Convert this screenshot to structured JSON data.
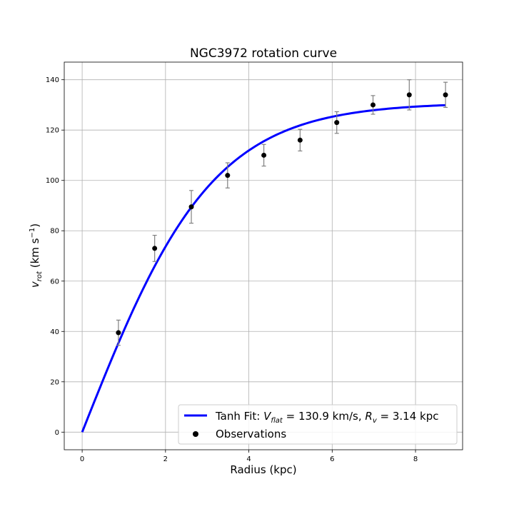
{
  "chart_data": {
    "type": "scatter",
    "title": "NGC3972 rotation curve",
    "xlabel": "Radius (kpc)",
    "ylabel_parts": {
      "v": "v",
      "sub": "rot",
      "unit_pre": " (km s",
      "exp": "−1",
      "unit_post": ")"
    },
    "xlim": [
      -0.43,
      9.13
    ],
    "ylim": [
      -7,
      147
    ],
    "x_ticks": [
      0,
      2,
      4,
      6,
      8
    ],
    "x_tick_labels": [
      "0",
      "2",
      "4",
      "6",
      "8"
    ],
    "y_ticks": [
      0,
      20,
      40,
      60,
      80,
      100,
      120,
      140
    ],
    "y_tick_labels": [
      "0",
      "20",
      "40",
      "60",
      "80",
      "100",
      "120",
      "140"
    ],
    "grid": true,
    "legend_position": "lower-right",
    "series": [
      {
        "name": "Tanh Fit",
        "kind": "line",
        "color": "#0000ff",
        "model": "tanh",
        "params": {
          "v_flat": 130.9,
          "r_v": 3.14
        },
        "x_range": [
          0,
          8.72
        ]
      },
      {
        "name": "Observations",
        "kind": "errorbar",
        "color": "#000000",
        "errorbar_color": "#808080",
        "points": [
          {
            "x": 0.87,
            "y": 39.5,
            "err": 5.0
          },
          {
            "x": 1.74,
            "y": 73.0,
            "err": 5.2
          },
          {
            "x": 2.62,
            "y": 89.5,
            "err": 6.5
          },
          {
            "x": 3.49,
            "y": 102.0,
            "err": 5.0
          },
          {
            "x": 4.36,
            "y": 110.0,
            "err": 4.3
          },
          {
            "x": 5.23,
            "y": 116.0,
            "err": 4.3
          },
          {
            "x": 6.11,
            "y": 123.0,
            "err": 4.3
          },
          {
            "x": 6.98,
            "y": 130.0,
            "err": 3.7
          },
          {
            "x": 7.85,
            "y": 134.0,
            "err": 6.0
          },
          {
            "x": 8.72,
            "y": 134.0,
            "err": 5.0
          }
        ]
      }
    ],
    "legend": {
      "fit_prefix": "Tanh Fit: ",
      "fit_v_symbol": "V",
      "fit_v_sub": "flat",
      "fit_v_value": " = 130.9 km/s, ",
      "fit_r_symbol": "R",
      "fit_r_sub": "v",
      "fit_r_value": " = 3.14 kpc",
      "observations": "Observations"
    }
  }
}
